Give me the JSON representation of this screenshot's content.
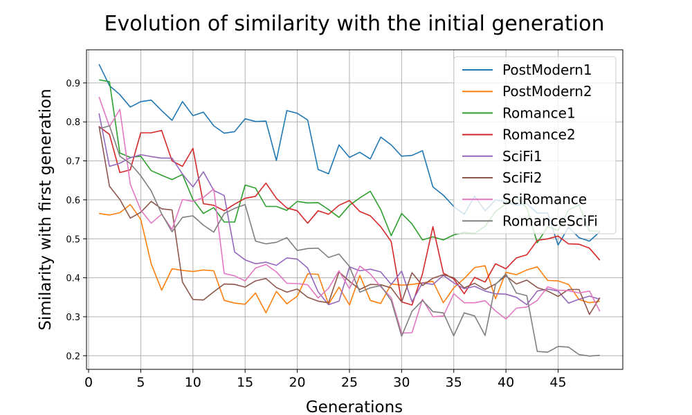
{
  "chart_data": {
    "type": "line",
    "title": "Evolution of similarity with the initial generation",
    "xlabel": "Generations",
    "ylabel": "Similarity with first generation",
    "xlim": [
      -0.2,
      51.2
    ],
    "ylim": [
      0.165,
      0.985
    ],
    "xticks": [
      0,
      5,
      10,
      15,
      20,
      25,
      30,
      35,
      40,
      45
    ],
    "yticks": [
      0.2,
      0.3,
      0.4,
      0.5,
      0.6,
      0.7,
      0.8,
      0.9
    ],
    "grid": true,
    "legend_position": "top-right",
    "x": [
      1,
      2,
      3,
      4,
      5,
      6,
      7,
      8,
      9,
      10,
      11,
      12,
      13,
      14,
      15,
      16,
      17,
      18,
      19,
      20,
      21,
      22,
      23,
      24,
      25,
      26,
      27,
      28,
      29,
      30,
      31,
      32,
      33,
      34,
      35,
      36,
      37,
      38,
      39,
      40,
      41,
      42,
      43,
      44,
      45,
      46,
      47,
      48,
      49
    ],
    "series": [
      {
        "name": "PostModern1",
        "color": "#1f77b4",
        "values": [
          0.948,
          0.893,
          0.87,
          0.838,
          0.852,
          0.856,
          0.829,
          0.804,
          0.852,
          0.816,
          0.825,
          0.79,
          0.771,
          0.775,
          0.808,
          0.801,
          0.802,
          0.701,
          0.829,
          0.822,
          0.805,
          0.678,
          0.667,
          0.741,
          0.709,
          0.722,
          0.705,
          0.761,
          0.741,
          0.712,
          0.714,
          0.726,
          0.633,
          0.612,
          0.583,
          0.563,
          0.609,
          0.572,
          0.6,
          0.595,
          0.586,
          0.59,
          0.566,
          0.566,
          0.484,
          0.53,
          0.503,
          0.494,
          0.518
        ]
      },
      {
        "name": "PostModern2",
        "color": "#ff7f0e",
        "values": [
          0.565,
          0.561,
          0.567,
          0.588,
          0.55,
          0.436,
          0.368,
          0.423,
          0.419,
          0.416,
          0.42,
          0.418,
          0.342,
          0.335,
          0.332,
          0.361,
          0.31,
          0.365,
          0.333,
          0.353,
          0.41,
          0.409,
          0.332,
          0.376,
          0.33,
          0.406,
          0.342,
          0.334,
          0.384,
          0.381,
          0.383,
          0.387,
          0.391,
          0.336,
          0.374,
          0.398,
          0.426,
          0.431,
          0.346,
          0.414,
          0.408,
          0.42,
          0.428,
          0.393,
          0.392,
          0.383,
          0.344,
          0.336,
          0.34
        ]
      },
      {
        "name": "Romance1",
        "color": "#2ca02c",
        "values": [
          0.908,
          0.903,
          0.72,
          0.709,
          0.712,
          0.675,
          0.663,
          0.652,
          0.665,
          0.601,
          0.565,
          0.58,
          0.543,
          0.543,
          0.638,
          0.63,
          0.583,
          0.583,
          0.573,
          0.596,
          0.592,
          0.593,
          0.575,
          0.555,
          0.586,
          0.605,
          0.622,
          0.575,
          0.508,
          0.565,
          0.538,
          0.497,
          0.505,
          0.497,
          0.51,
          0.516,
          0.514,
          0.532,
          0.57,
          0.59,
          0.607,
          0.579,
          0.49,
          0.531,
          0.521,
          0.574,
          0.587,
          0.52,
          0.52
        ]
      },
      {
        "name": "Romance2",
        "color": "#d62728",
        "values": [
          0.788,
          0.768,
          0.67,
          0.677,
          0.772,
          0.772,
          0.778,
          0.7,
          0.686,
          0.732,
          0.59,
          0.586,
          0.572,
          0.589,
          0.604,
          0.609,
          0.643,
          0.604,
          0.579,
          0.572,
          0.54,
          0.572,
          0.563,
          0.586,
          0.598,
          0.57,
          0.559,
          0.531,
          0.493,
          0.338,
          0.33,
          0.41,
          0.531,
          0.412,
          0.397,
          0.359,
          0.401,
          0.389,
          0.436,
          0.423,
          0.451,
          0.459,
          0.496,
          0.5,
          0.507,
          0.487,
          0.486,
          0.476,
          0.445
        ]
      },
      {
        "name": "SciFi1",
        "color": "#9467bd",
        "values": [
          0.822,
          0.686,
          0.694,
          0.708,
          0.716,
          0.711,
          0.707,
          0.707,
          0.666,
          0.633,
          0.672,
          0.624,
          0.611,
          0.466,
          0.446,
          0.436,
          0.44,
          0.432,
          0.451,
          0.448,
          0.425,
          0.364,
          0.331,
          0.34,
          0.428,
          0.418,
          0.422,
          0.415,
          0.383,
          0.417,
          0.338,
          0.387,
          0.383,
          0.406,
          0.387,
          0.372,
          0.378,
          0.366,
          0.359,
          0.358,
          0.35,
          0.331,
          0.366,
          0.371,
          0.366,
          0.335,
          0.345,
          0.353,
          0.345
        ]
      },
      {
        "name": "SciFi2",
        "color": "#8c564b",
        "values": [
          0.789,
          0.635,
          0.601,
          0.553,
          0.568,
          0.596,
          0.577,
          0.574,
          0.389,
          0.344,
          0.343,
          0.364,
          0.384,
          0.383,
          0.376,
          0.392,
          0.398,
          0.375,
          0.363,
          0.371,
          0.35,
          0.34,
          0.336,
          0.415,
          0.391,
          0.37,
          0.383,
          0.382,
          0.374,
          0.338,
          0.413,
          0.38,
          0.399,
          0.408,
          0.4,
          0.374,
          0.386,
          0.37,
          0.384,
          0.405,
          0.384,
          0.394,
          0.375,
          0.366,
          0.352,
          0.37,
          0.37,
          0.306,
          0.349
        ]
      },
      {
        "name": "SciRomance",
        "color": "#e377c2",
        "values": [
          0.864,
          0.788,
          0.832,
          0.64,
          0.574,
          0.54,
          0.563,
          0.524,
          0.601,
          0.596,
          0.606,
          0.628,
          0.411,
          0.405,
          0.392,
          0.425,
          0.434,
          0.415,
          0.386,
          0.385,
          0.382,
          0.348,
          0.373,
          0.418,
          0.372,
          0.43,
          0.41,
          0.377,
          0.349,
          0.258,
          0.259,
          0.345,
          0.3,
          0.302,
          0.359,
          0.336,
          0.336,
          0.341,
          0.315,
          0.294,
          0.322,
          0.325,
          0.342,
          0.377,
          0.368,
          0.367,
          0.361,
          0.366,
          0.314
        ]
      },
      {
        "name": "RomanceSciFi",
        "color": "#7f7f7f",
        "values": [
          0.782,
          0.79,
          0.712,
          0.693,
          0.662,
          0.623,
          0.564,
          0.518,
          0.555,
          0.559,
          0.535,
          0.517,
          0.565,
          0.578,
          0.588,
          0.494,
          0.487,
          0.491,
          0.503,
          0.47,
          0.475,
          0.476,
          0.452,
          0.461,
          0.429,
          0.363,
          0.374,
          0.38,
          0.342,
          0.25,
          0.314,
          0.342,
          0.313,
          0.31,
          0.251,
          0.31,
          0.302,
          0.252,
          0.383,
          0.41,
          0.361,
          0.354,
          0.211,
          0.209,
          0.224,
          0.222,
          0.203,
          0.199,
          0.201
        ]
      }
    ]
  }
}
